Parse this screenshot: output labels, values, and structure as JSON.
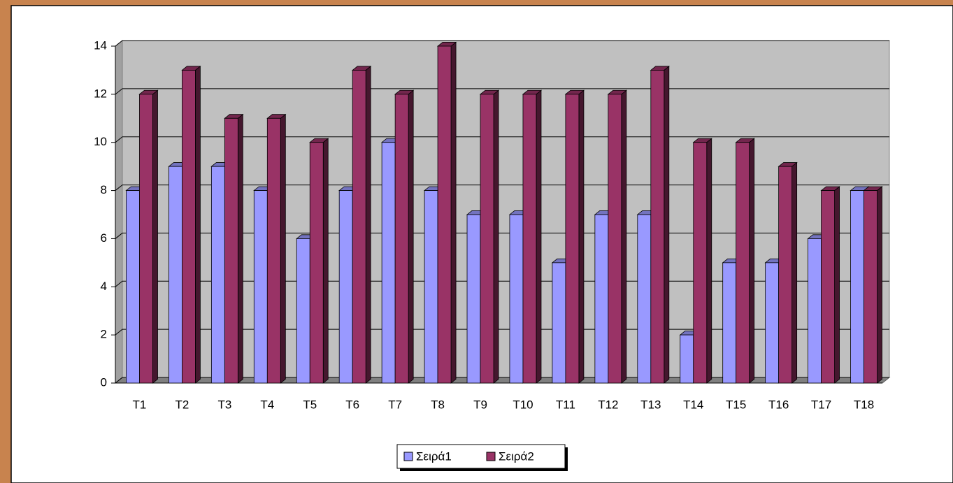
{
  "chart_data": {
    "type": "bar3d",
    "categories": [
      "T1",
      "T2",
      "T3",
      "T4",
      "T5",
      "T6",
      "T7",
      "T8",
      "T9",
      "T10",
      "T11",
      "T12",
      "T13",
      "T14",
      "T15",
      "T16",
      "T17",
      "T18"
    ],
    "series": [
      {
        "name": "Σειρά1",
        "color": "#9999ff",
        "values": [
          8,
          9,
          9,
          8,
          6,
          8,
          10,
          8,
          7,
          7,
          5,
          7,
          7,
          2,
          5,
          5,
          6,
          8
        ]
      },
      {
        "name": "Σειρά2",
        "color": "#993366",
        "values": [
          12,
          13,
          11,
          11,
          10,
          13,
          12,
          14,
          12,
          12,
          12,
          12,
          13,
          10,
          10,
          9,
          8,
          8
        ]
      }
    ],
    "ylim": [
      0,
      14
    ],
    "yticks": [
      0,
      2,
      4,
      6,
      8,
      10,
      12,
      14
    ],
    "grid": true,
    "legend": "bottom"
  }
}
